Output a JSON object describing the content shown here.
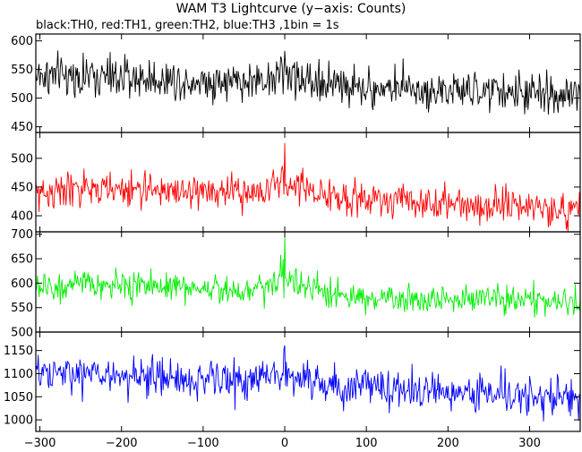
{
  "figure": {
    "title": "WAM T3 Lightcurve (y−axis: Counts)",
    "subtitle": "black:TH0, red:TH1, green:TH2, blue:TH3 ,1bin = 1s"
  },
  "chart_data": {
    "type": "line",
    "title": "WAM T3 Lightcurve (y−axis: Counts)",
    "subtitle": "black:TH0, red:TH1, green:TH2, blue:TH3 ,1bin = 1s",
    "xlabel": "",
    "ylabel": "",
    "xlim": [
      -305,
      362
    ],
    "x_ticks": [
      -300,
      -200,
      -100,
      0,
      100,
      200,
      300
    ],
    "bin_s": 1,
    "grid": false,
    "legend": "none",
    "series": [
      {
        "name": "TH0",
        "color": "#000000",
        "ylim": [
          440,
          612
        ],
        "y_ticks": [
          450,
          500,
          550,
          600
        ],
        "noise": 32,
        "spikes": [
          [
            0,
            55
          ],
          [
            -5,
            40
          ],
          [
            60,
            25
          ]
        ],
        "profile": [
          [
            -305,
            540
          ],
          [
            -250,
            538
          ],
          [
            -150,
            533
          ],
          [
            -50,
            528
          ],
          [
            0,
            540
          ],
          [
            50,
            525
          ],
          [
            150,
            515
          ],
          [
            250,
            510
          ],
          [
            362,
            505
          ]
        ]
      },
      {
        "name": "TH1",
        "color": "#ff0000",
        "ylim": [
          372,
          545
        ],
        "y_ticks": [
          400,
          450,
          500
        ],
        "noise": 28,
        "spikes": [
          [
            0,
            90
          ],
          [
            -2,
            50
          ],
          [
            45,
            40
          ]
        ],
        "profile": [
          [
            -305,
            440
          ],
          [
            -250,
            445
          ],
          [
            -150,
            445
          ],
          [
            -50,
            438
          ],
          [
            0,
            455
          ],
          [
            50,
            435
          ],
          [
            150,
            425
          ],
          [
            250,
            418
          ],
          [
            362,
            410
          ]
        ]
      },
      {
        "name": "TH2",
        "color": "#00ee00",
        "ylim": [
          500,
          705
        ],
        "y_ticks": [
          500,
          550,
          600,
          650,
          700
        ],
        "noise": 27,
        "spikes": [
          [
            0,
            100
          ],
          [
            -5,
            55
          ],
          [
            40,
            40
          ]
        ],
        "profile": [
          [
            -305,
            590
          ],
          [
            -250,
            595
          ],
          [
            -150,
            595
          ],
          [
            -50,
            585
          ],
          [
            0,
            610
          ],
          [
            50,
            575
          ],
          [
            150,
            568
          ],
          [
            250,
            565
          ],
          [
            362,
            560
          ]
        ]
      },
      {
        "name": "TH3",
        "color": "#0000ff",
        "ylim": [
          975,
          1190
        ],
        "y_ticks": [
          1000,
          1050,
          1100,
          1150
        ],
        "noise": 38,
        "spikes": [
          [
            0,
            60
          ],
          [
            -140,
            45
          ],
          [
            55,
            40
          ]
        ],
        "profile": [
          [
            -305,
            1095
          ],
          [
            -250,
            1100
          ],
          [
            -150,
            1090
          ],
          [
            -50,
            1085
          ],
          [
            0,
            1095
          ],
          [
            50,
            1075
          ],
          [
            150,
            1065
          ],
          [
            250,
            1055
          ],
          [
            362,
            1050
          ]
        ]
      }
    ]
  }
}
